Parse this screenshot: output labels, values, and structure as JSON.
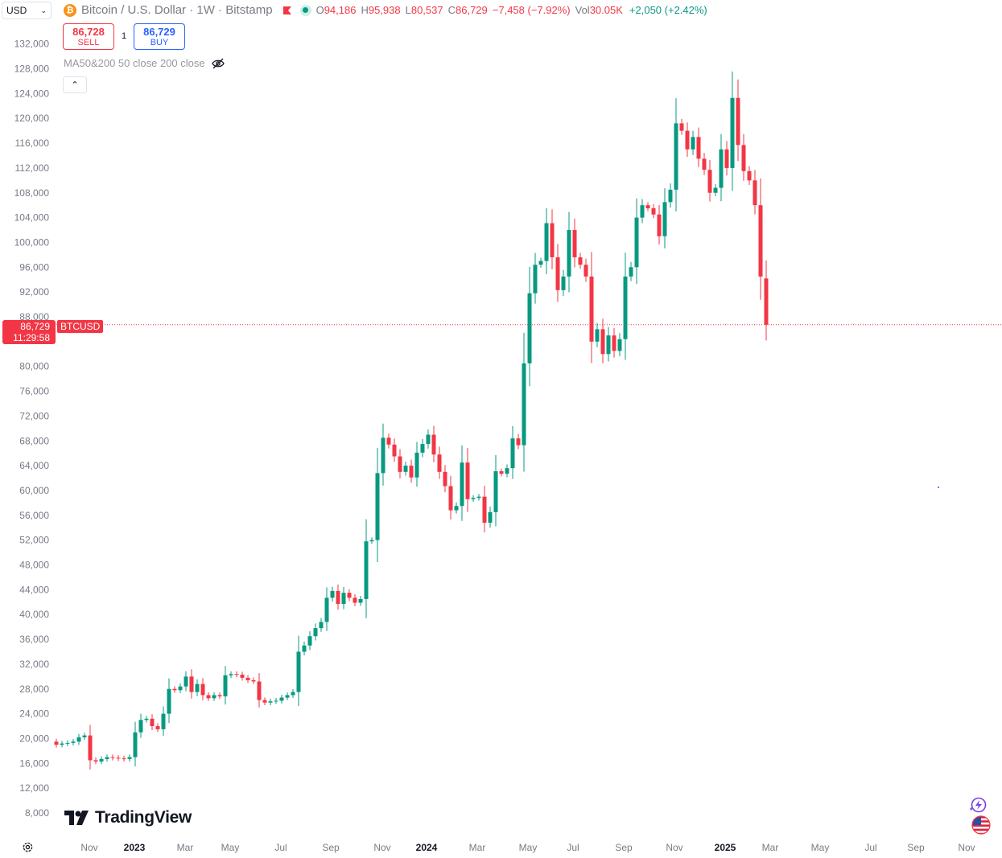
{
  "header": {
    "currency": "USD",
    "symbol_title": "Bitcoin / U.S. Dollar · 1W · Bitstamp",
    "ohlc": {
      "o_label": "O",
      "o": "94,186",
      "h_label": "H",
      "h": "95,938",
      "l_label": "L",
      "l": "80,537",
      "c_label": "C",
      "c": "86,729",
      "change": "−7,458 (−7.92%)"
    },
    "vol_label": "Vol",
    "vol": "30.05K",
    "vol_change": "+2,050 (+2.42%)"
  },
  "trade": {
    "sell_price": "86,728",
    "sell_label": "SELL",
    "spread": "1",
    "buy_price": "86,729",
    "buy_label": "BUY"
  },
  "indicator": {
    "label": "MA50&200 50 close 200 close"
  },
  "price_tag": {
    "price": "86,729",
    "countdown": "11:29:58",
    "symbol": "BTCUSD"
  },
  "branding": {
    "logo_text": "TradingView"
  },
  "colors": {
    "up": "#089981",
    "down": "#f23645",
    "text": "#131722",
    "axis_text": "#787b86"
  },
  "icons": {
    "gear": "gear-icon",
    "eye": "eye-off-icon",
    "bolt": "lightning-icon",
    "flag": "us-flag-icon"
  },
  "chart_data": {
    "type": "candlestick",
    "title": "Bitcoin / U.S. Dollar · 1W · Bitstamp",
    "y_axis": {
      "ylim": [
        8000,
        133500
      ],
      "ticks": [
        "132,000",
        "128,000",
        "124,000",
        "120,000",
        "116,000",
        "112,000",
        "108,000",
        "104,000",
        "100,000",
        "96,000",
        "92,000",
        "88,000",
        "80,000",
        "76,000",
        "72,000",
        "68,000",
        "64,000",
        "60,000",
        "56,000",
        "52,000",
        "48,000",
        "44,000",
        "40,000",
        "36,000",
        "32,000",
        "28,000",
        "24,000",
        "20,000",
        "16,000",
        "12,000",
        "8,000"
      ]
    },
    "x_axis": {
      "labels": [
        "Nov",
        "2023",
        "Mar",
        "May",
        "Jul",
        "Sep",
        "Nov",
        "2024",
        "Mar",
        "May",
        "Jul",
        "Sep",
        "Nov",
        "2025",
        "Mar",
        "May",
        "Jul",
        "Sep",
        "Nov"
      ]
    },
    "last_price": 86729,
    "closes": [
      19000,
      19200,
      19300,
      19500,
      20200,
      20500,
      16500,
      16300,
      16700,
      17000,
      16900,
      16800,
      16700,
      17000,
      21000,
      23000,
      23200,
      22000,
      21500,
      24000,
      28000,
      27800,
      28400,
      30000,
      27500,
      28800,
      27000,
      26500,
      27000,
      26800,
      30200,
      30400,
      30300,
      29800,
      29400,
      29200,
      26200,
      25800,
      26000,
      26100,
      26600,
      27000,
      27500,
      34000,
      35000,
      36500,
      37800,
      38800,
      42700,
      43800,
      41700,
      43500,
      42700,
      41900,
      42500,
      51800,
      52000,
      62800,
      68500,
      67400,
      65500,
      63000,
      64000,
      62100,
      66100,
      67500,
      69000,
      65800,
      63000,
      60700,
      56800,
      57500,
      64500,
      58600,
      58800,
      59000,
      54800,
      56500,
      63100,
      62700,
      63600,
      68400,
      67300,
      80500,
      91800,
      96400,
      97000,
      103100,
      97600,
      92300,
      94500,
      102000,
      97600,
      96400,
      94500,
      84000,
      86000,
      82000,
      85000,
      82500,
      84400,
      94500,
      96000,
      104000,
      106000,
      105500,
      104500,
      101000,
      106500,
      108500,
      119200,
      118000,
      115000,
      117000,
      113500,
      111700,
      108000,
      108800,
      115000,
      112000,
      123300,
      115700,
      111500,
      110000,
      106000,
      94500,
      86729
    ],
    "opens": [
      19500,
      19000,
      19200,
      19300,
      19500,
      20200,
      20500,
      16500,
      16300,
      16700,
      17000,
      16900,
      16800,
      16700,
      17000,
      21000,
      23000,
      23200,
      22000,
      21500,
      24000,
      28000,
      27800,
      28400,
      30000,
      27500,
      28800,
      27000,
      26500,
      27000,
      26800,
      30200,
      30400,
      30300,
      29800,
      29400,
      29200,
      26200,
      25800,
      26000,
      26100,
      26600,
      27000,
      27500,
      34000,
      35000,
      36500,
      37800,
      38800,
      42700,
      43800,
      41700,
      43500,
      42700,
      41900,
      42500,
      51800,
      52000,
      62800,
      68500,
      67400,
      65500,
      63000,
      64000,
      62100,
      66100,
      67500,
      69000,
      65800,
      63000,
      60700,
      56800,
      57500,
      64500,
      58600,
      58800,
      59000,
      54800,
      56500,
      63100,
      62700,
      63600,
      68400,
      67300,
      80500,
      91800,
      96400,
      97000,
      103100,
      97600,
      92300,
      94500,
      102000,
      97600,
      96400,
      94500,
      84000,
      86000,
      82000,
      85000,
      82500,
      84400,
      94500,
      96000,
      104000,
      106000,
      105500,
      104500,
      101000,
      106500,
      108500,
      119200,
      118000,
      115000,
      117000,
      113500,
      111700,
      108000,
      108800,
      115000,
      112000,
      123300,
      115700,
      111500,
      110000,
      106000,
      94186
    ]
  }
}
